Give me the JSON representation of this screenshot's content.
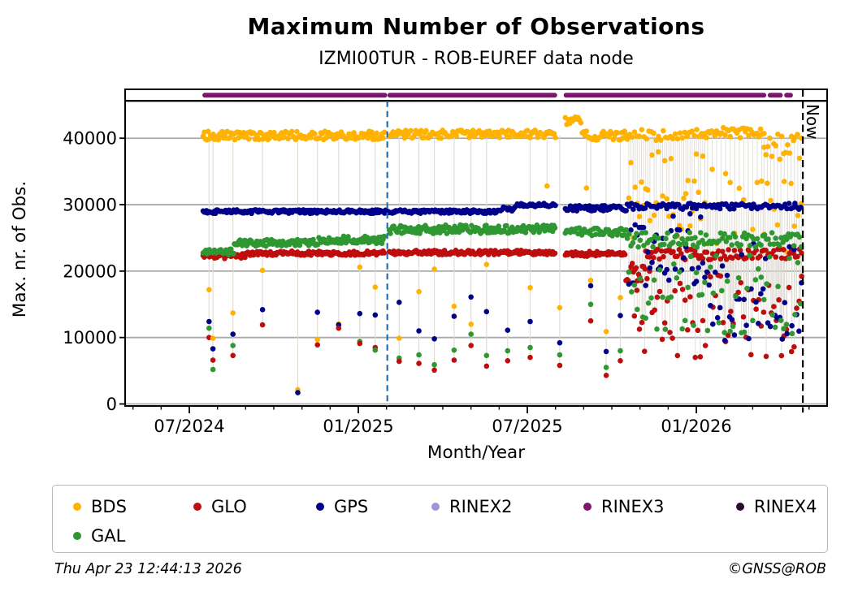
{
  "header": {
    "title": "Maximum Number of Observations",
    "subtitle": "IZMI00TUR - ROB-EUREF data node"
  },
  "footer": {
    "timestamp": "Thu Apr 23 12:44:13 2026",
    "copyright": "©GNSS@ROB"
  },
  "legend": {
    "items": [
      {
        "label": "BDS",
        "color": "#FFB300"
      },
      {
        "label": "GLO",
        "color": "#BE0D0D"
      },
      {
        "label": "GPS",
        "color": "#00008B"
      },
      {
        "label": "RINEX2",
        "color": "#9A97D6"
      },
      {
        "label": "RINEX3",
        "color": "#7D156F"
      },
      {
        "label": "RINEX4",
        "color": "#2A0C2E"
      },
      {
        "label": "GAL",
        "color": "#2E9732"
      }
    ]
  },
  "chart_data": {
    "type": "scatter",
    "title": "Maximum Number of Observations",
    "subtitle": "IZMI00TUR - ROB-EUREF data node",
    "xlabel": "Month/Year",
    "ylabel": "Max. nr. of Obs.",
    "x_axis": {
      "tick_labels": [
        "07/2024",
        "01/2025",
        "07/2025",
        "01/2026"
      ],
      "tick_months": [
        0,
        6,
        12,
        18
      ],
      "minor_tick_every_month": true,
      "range_months": [
        -2.28,
        22.65
      ],
      "month_zero": "07/2024"
    },
    "y_axis": {
      "ticks": [
        0,
        10000,
        20000,
        30000,
        40000
      ],
      "range": [
        0,
        45700
      ],
      "gridlines": true,
      "grid_color": "#AAAAAA"
    },
    "annotations": {
      "now_line": {
        "month": 21.78,
        "label": "Now",
        "color": "#000000",
        "style": "dashed"
      },
      "marker_line": {
        "month": 7.03,
        "color": "#1F6FB4",
        "style": "dashed"
      }
    },
    "dropline_color": "#DFDAD2",
    "series": [
      {
        "name": "BDS",
        "color": "#FFB300",
        "band_top": 40400,
        "band_ref": 40400,
        "segments": [
          {
            "from": 0.49,
            "to": 6.95,
            "base": 40400,
            "jitter": 650,
            "step": 0.045
          },
          {
            "from": 7.1,
            "to": 13.0,
            "base": 40600,
            "jitter": 600,
            "step": 0.045
          },
          {
            "from": 13.35,
            "to": 13.95,
            "base": 42600,
            "jitter": 800,
            "step": 0.05
          },
          {
            "from": 13.95,
            "to": 15.55,
            "base": 40400,
            "jitter": 700,
            "step": 0.05
          },
          {
            "from": 15.55,
            "to": 18.3,
            "base": 40500,
            "jitter": 900,
            "step": 0.085
          },
          {
            "from": 15.6,
            "to": 18.3,
            "base": 31500,
            "jitter": 6500,
            "step": 0.075,
            "drop": true
          },
          {
            "from": 18.3,
            "to": 20.4,
            "base": 40800,
            "jitter": 800,
            "step": 0.06
          },
          {
            "from": 18.4,
            "to": 20.4,
            "base": 30000,
            "jitter": 6000,
            "step": 0.16,
            "drop": true
          },
          {
            "from": 20.4,
            "to": 21.75,
            "base": 38500,
            "jitter": 2200,
            "step": 0.07
          },
          {
            "from": 20.4,
            "to": 21.75,
            "base": 28000,
            "jitter": 7000,
            "step": 0.12,
            "drop": true
          }
        ]
      },
      {
        "name": "GLO",
        "color": "#BE0D0D",
        "band_top": 22600,
        "band_ref": 22500,
        "segments": [
          {
            "from": 0.49,
            "to": 2.0,
            "base": 22300,
            "jitter": 420,
            "step": 0.045
          },
          {
            "from": 2.0,
            "to": 6.95,
            "base": 22700,
            "jitter": 320,
            "step": 0.04
          },
          {
            "from": 7.1,
            "to": 13.0,
            "base": 22800,
            "jitter": 330,
            "step": 0.04
          },
          {
            "from": 13.35,
            "to": 15.5,
            "base": 22600,
            "jitter": 380,
            "step": 0.045
          },
          {
            "from": 15.5,
            "to": 16.2,
            "base": 19800,
            "jitter": 1400,
            "step": 0.045
          },
          {
            "from": 16.2,
            "to": 21.75,
            "base": 22500,
            "jitter": 800,
            "step": 0.07
          },
          {
            "from": 15.8,
            "to": 21.75,
            "base": 13500,
            "jitter": 6500,
            "step": 0.09,
            "drop": true
          }
        ]
      },
      {
        "name": "GPS",
        "color": "#00008B",
        "band_top": 29300,
        "band_ref": 29600,
        "segments": [
          {
            "from": 0.49,
            "to": 10.9,
            "base": 28950,
            "jitter": 280,
            "step": 0.04
          },
          {
            "from": 10.9,
            "to": 11.6,
            "base": 29300,
            "jitter": 350,
            "step": 0.05
          },
          {
            "from": 11.6,
            "to": 13.0,
            "base": 29950,
            "jitter": 250,
            "step": 0.045
          },
          {
            "from": 13.35,
            "to": 15.55,
            "base": 29450,
            "jitter": 400,
            "step": 0.045
          },
          {
            "from": 15.55,
            "to": 21.75,
            "base": 29750,
            "jitter": 450,
            "step": 0.07
          },
          {
            "from": 15.6,
            "to": 18.5,
            "base": 23500,
            "jitter": 6000,
            "step": 0.075,
            "drop": true
          },
          {
            "from": 18.5,
            "to": 21.75,
            "base": 17000,
            "jitter": 7500,
            "step": 0.085,
            "drop": true
          }
        ]
      },
      {
        "name": "GAL",
        "color": "#2E9732",
        "band_top": 25800,
        "band_ref": 25000,
        "segments": [
          {
            "from": 0.49,
            "to": 1.6,
            "base": 22900,
            "jitter": 450,
            "step": 0.045
          },
          {
            "from": 1.6,
            "to": 4.6,
            "base": 24250,
            "jitter": 500,
            "step": 0.04
          },
          {
            "from": 4.6,
            "to": 6.95,
            "base": 24700,
            "jitter": 550,
            "step": 0.04
          },
          {
            "from": 7.1,
            "to": 13.0,
            "base": 26300,
            "jitter": 650,
            "step": 0.04
          },
          {
            "from": 13.35,
            "to": 15.55,
            "base": 25900,
            "jitter": 600,
            "step": 0.045
          },
          {
            "from": 15.55,
            "to": 21.75,
            "base": 24700,
            "jitter": 1100,
            "step": 0.065
          },
          {
            "from": 15.6,
            "to": 21.75,
            "base": 16500,
            "jitter": 6000,
            "step": 0.1,
            "drop": true
          }
        ]
      }
    ],
    "outlier_events": [
      {
        "m": 0.7,
        "points": [
          [
            "BDS",
            17200
          ],
          [
            "GPS",
            12400
          ],
          [
            "GAL",
            11400
          ],
          [
            "GLO",
            10000
          ]
        ]
      },
      {
        "m": 0.84,
        "points": [
          [
            "BDS",
            9900
          ],
          [
            "GPS",
            8300
          ],
          [
            "GLO",
            6600
          ],
          [
            "GAL",
            5200
          ]
        ]
      },
      {
        "m": 1.55,
        "points": [
          [
            "BDS",
            13700
          ],
          [
            "GPS",
            10500
          ],
          [
            "GAL",
            8800
          ],
          [
            "GLO",
            7300
          ]
        ]
      },
      {
        "m": 2.6,
        "points": [
          [
            "BDS",
            20100
          ],
          [
            "GPS",
            14200
          ],
          [
            "GLO",
            11900
          ]
        ]
      },
      {
        "m": 3.85,
        "points": [
          [
            "BDS",
            2150
          ],
          [
            "GPS",
            1700
          ]
        ]
      },
      {
        "m": 4.55,
        "points": [
          [
            "GPS",
            13800
          ],
          [
            "BDS",
            9700
          ],
          [
            "GLO",
            8900
          ]
        ]
      },
      {
        "m": 5.3,
        "points": [
          [
            "BDS",
            12050
          ],
          [
            "GPS",
            11900
          ],
          [
            "GLO",
            11400
          ]
        ]
      },
      {
        "m": 6.05,
        "points": [
          [
            "BDS",
            20600
          ],
          [
            "GPS",
            13600
          ],
          [
            "GAL",
            9400
          ],
          [
            "GLO",
            9100
          ]
        ]
      },
      {
        "m": 6.6,
        "points": [
          [
            "BDS",
            17600
          ],
          [
            "GPS",
            13400
          ],
          [
            "GLO",
            8500
          ],
          [
            "GAL",
            8100
          ]
        ]
      },
      {
        "m": 7.45,
        "points": [
          [
            "GPS",
            15300
          ],
          [
            "BDS",
            9900
          ],
          [
            "GAL",
            6900
          ],
          [
            "GLO",
            6400
          ]
        ]
      },
      {
        "m": 8.15,
        "points": [
          [
            "BDS",
            16900
          ],
          [
            "GPS",
            11000
          ],
          [
            "GAL",
            7400
          ],
          [
            "GLO",
            6100
          ]
        ]
      },
      {
        "m": 8.7,
        "points": [
          [
            "BDS",
            20300
          ],
          [
            "GPS",
            9800
          ],
          [
            "GAL",
            5900
          ],
          [
            "GLO",
            5100
          ]
        ]
      },
      {
        "m": 9.4,
        "points": [
          [
            "BDS",
            14700
          ],
          [
            "GPS",
            13200
          ],
          [
            "GAL",
            8100
          ],
          [
            "GLO",
            6600
          ]
        ]
      },
      {
        "m": 10.0,
        "points": [
          [
            "GPS",
            16100
          ],
          [
            "BDS",
            12000
          ],
          [
            "GAL",
            10500
          ],
          [
            "GLO",
            8800
          ]
        ]
      },
      {
        "m": 10.55,
        "points": [
          [
            "BDS",
            21000
          ],
          [
            "GPS",
            13900
          ],
          [
            "GAL",
            7300
          ],
          [
            "GLO",
            5700
          ]
        ]
      },
      {
        "m": 11.3,
        "points": [
          [
            "GPS",
            11100
          ],
          [
            "GAL",
            8000
          ],
          [
            "GLO",
            6500
          ]
        ]
      },
      {
        "m": 12.1,
        "points": [
          [
            "BDS",
            17500
          ],
          [
            "GPS",
            12400
          ],
          [
            "GAL",
            8500
          ],
          [
            "GLO",
            7000
          ]
        ]
      },
      {
        "m": 12.7,
        "points": [
          [
            "BDS",
            32800
          ]
        ]
      },
      {
        "m": 13.15,
        "points": [
          [
            "BDS",
            14500
          ],
          [
            "GPS",
            9200
          ],
          [
            "GAL",
            7400
          ],
          [
            "GLO",
            5800
          ]
        ]
      },
      {
        "m": 14.1,
        "points": [
          [
            "BDS",
            32500
          ]
        ]
      },
      {
        "m": 14.25,
        "points": [
          [
            "BDS",
            18600
          ],
          [
            "GPS",
            17800
          ],
          [
            "GAL",
            15000
          ],
          [
            "GLO",
            12500
          ]
        ]
      },
      {
        "m": 14.8,
        "points": [
          [
            "BDS",
            10900
          ],
          [
            "GPS",
            7900
          ],
          [
            "GAL",
            5500
          ],
          [
            "GLO",
            4300
          ]
        ]
      },
      {
        "m": 15.3,
        "points": [
          [
            "BDS",
            16000
          ],
          [
            "GPS",
            13300
          ],
          [
            "GAL",
            8000
          ],
          [
            "GLO",
            6500
          ]
        ]
      }
    ],
    "rinex_strip": {
      "series": "RINEX3",
      "color": "#7D156F",
      "from": 0.55,
      "to": 21.35,
      "step": 0.045,
      "gaps": [
        [
          6.95,
          7.1
        ],
        [
          13.0,
          13.35
        ],
        [
          20.42,
          20.58
        ],
        [
          21.02,
          21.18
        ]
      ]
    }
  }
}
